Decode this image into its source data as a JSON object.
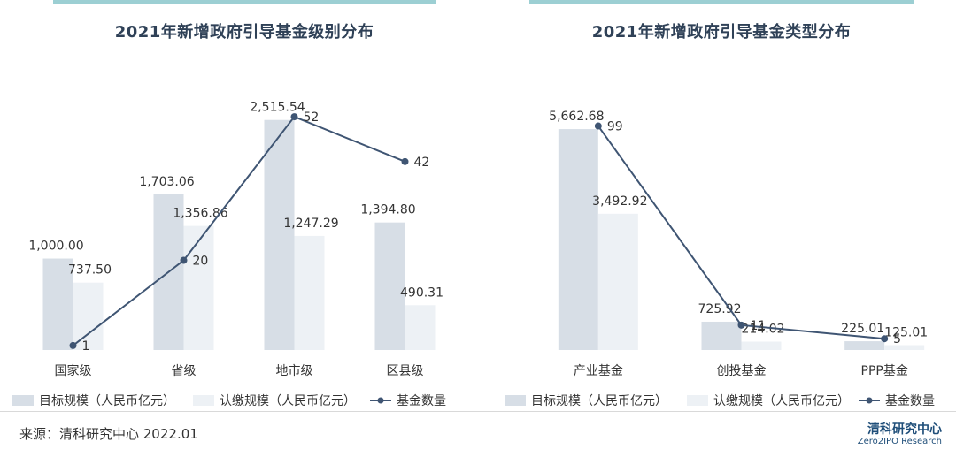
{
  "left_title": "2021年新增政府引导基金级别分布",
  "right_title": "2021年新增政府引导基金类型分布",
  "legend": {
    "target": "目标规模（人民币亿元）",
    "paid": "认缴规模（人民币亿元）",
    "count": "基金数量"
  },
  "source": "来源：清科研究中心 2022.01",
  "logo": {
    "cn": "清科研究中心",
    "en": "Zero2IPO Research"
  },
  "colors": {
    "target": "#d7dee6",
    "paid": "#edf1f5",
    "line": "#3f5573",
    "topbar": "#9ccfd3"
  },
  "chart_data": [
    {
      "type": "bar",
      "title": "2021年新增政府引导基金级别分布",
      "categories": [
        "国家级",
        "省级",
        "地市级",
        "区县级"
      ],
      "series": [
        {
          "name": "目标规模（人民币亿元）",
          "type": "bar",
          "values": [
            1000.0,
            1703.06,
            2515.54,
            1394.8
          ],
          "labels": [
            "1,000.00",
            "1,703.06",
            "2,515.54",
            "1,394.80"
          ]
        },
        {
          "name": "认缴规模（人民币亿元）",
          "type": "bar",
          "values": [
            737.5,
            1356.86,
            1247.29,
            490.31
          ],
          "labels": [
            "737.50",
            "1,356.86",
            "1,247.29",
            "490.31"
          ]
        },
        {
          "name": "基金数量",
          "type": "line",
          "axis": "secondary",
          "values": [
            1,
            20,
            52,
            42
          ],
          "labels": [
            "1",
            "20",
            "52",
            "42"
          ]
        }
      ],
      "ylim": [
        0,
        2600
      ],
      "y2lim": [
        0,
        53
      ],
      "grid": false,
      "legend": "bottom"
    },
    {
      "type": "bar",
      "title": "2021年新增政府引导基金类型分布",
      "categories": [
        "产业基金",
        "创投基金",
        "PPP基金"
      ],
      "series": [
        {
          "name": "目标规模（人民币亿元）",
          "type": "bar",
          "values": [
            5662.68,
            725.92,
            225.01
          ],
          "labels": [
            "5,662.68",
            "725.92",
            "225.01"
          ]
        },
        {
          "name": "认缴规模（人民币亿元）",
          "type": "bar",
          "values": [
            3492.92,
            214.02,
            125.01
          ],
          "labels": [
            "3,492.92",
            "214.02",
            "125.01"
          ]
        },
        {
          "name": "基金数量",
          "type": "line",
          "axis": "secondary",
          "values": [
            99,
            11,
            5
          ],
          "labels": [
            "99",
            "11",
            "5"
          ]
        }
      ],
      "ylim": [
        0,
        5800
      ],
      "y2lim": [
        0,
        100
      ],
      "grid": false,
      "legend": "bottom"
    }
  ]
}
